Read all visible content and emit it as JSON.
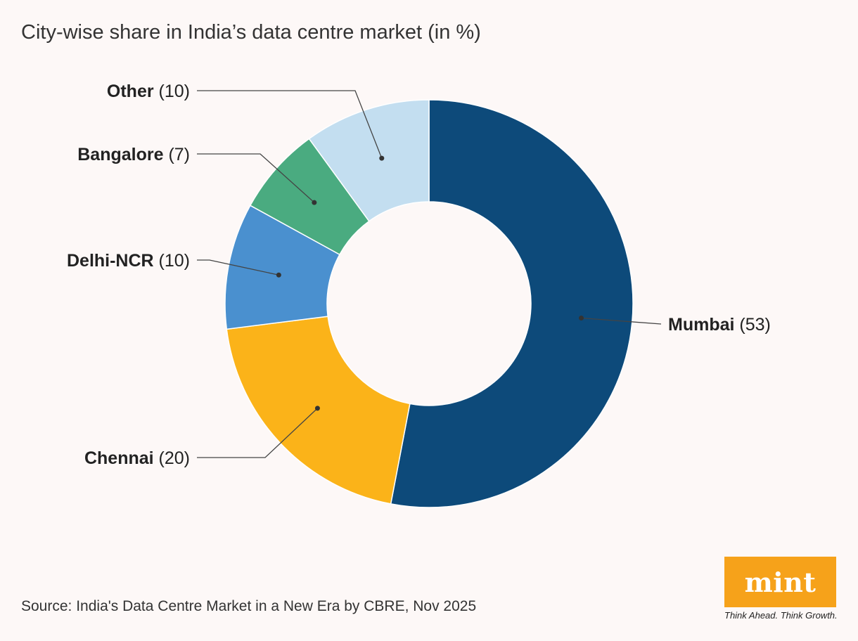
{
  "title": "City-wise share in India’s data centre market (in %)",
  "source": "Source: India's Data Centre Market in a New Era by CBRE, Nov 2025",
  "logo": {
    "text": "mint",
    "tagline": "Think Ahead. Think Growth."
  },
  "colors": {
    "Mumbai": "#0d4a7a",
    "Chennai": "#fbb319",
    "Delhi-NCR": "#4a90cf",
    "Bangalore": "#4aab80",
    "Other": "#c3def0",
    "logo": "#f6a21a"
  },
  "chart_data": {
    "type": "pie",
    "donut": true,
    "title": "City-wise share in India’s data centre market (in %)",
    "categories": [
      "Mumbai",
      "Chennai",
      "Delhi-NCR",
      "Bangalore",
      "Other"
    ],
    "values": [
      53,
      20,
      10,
      7,
      10
    ],
    "value_labels": [
      "(53)",
      "(20)",
      "(10)",
      "(7)",
      "(10)"
    ],
    "legend": "none",
    "start": "top, clockwise"
  }
}
